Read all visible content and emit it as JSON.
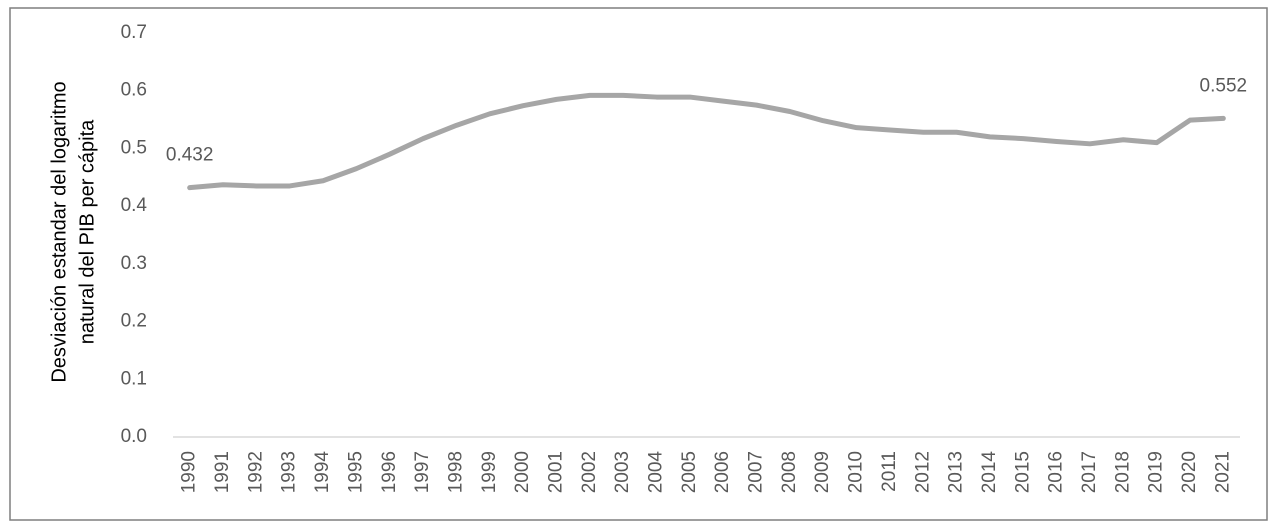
{
  "chart_data": {
    "type": "line",
    "ylabel": [
      "Desviación estandar del logaritmo",
      "natural del PIB per cápita"
    ],
    "categories": [
      "1990",
      "1991",
      "1992",
      "1993",
      "1994",
      "1995",
      "1996",
      "1997",
      "1998",
      "1999",
      "2000",
      "2001",
      "2002",
      "2003",
      "2004",
      "2005",
      "2006",
      "2007",
      "2008",
      "2009",
      "2010",
      "2011",
      "2012",
      "2013",
      "2014",
      "2015",
      "2016",
      "2017",
      "2018",
      "2019",
      "2020",
      "2021"
    ],
    "values": [
      0.432,
      0.437,
      0.435,
      0.435,
      0.444,
      0.465,
      0.49,
      0.517,
      0.54,
      0.56,
      0.574,
      0.585,
      0.592,
      0.592,
      0.589,
      0.589,
      0.582,
      0.575,
      0.564,
      0.548,
      0.536,
      0.532,
      0.528,
      0.528,
      0.52,
      0.517,
      0.512,
      0.508,
      0.515,
      0.51,
      0.549,
      0.552
    ],
    "value_labels": [
      "0.432",
      null,
      null,
      null,
      null,
      null,
      null,
      null,
      null,
      null,
      null,
      null,
      null,
      null,
      null,
      null,
      null,
      null,
      null,
      null,
      null,
      null,
      null,
      null,
      null,
      null,
      null,
      null,
      null,
      null,
      null,
      "0.552"
    ],
    "color": "#a6a6a6",
    "ylim": [
      0,
      0.7
    ],
    "yticks": [
      {
        "value": 0,
        "label": "0.0"
      },
      0.1,
      0.2,
      0.3,
      0.4,
      0.5,
      0.6,
      0.7
    ],
    "grid": false
  }
}
